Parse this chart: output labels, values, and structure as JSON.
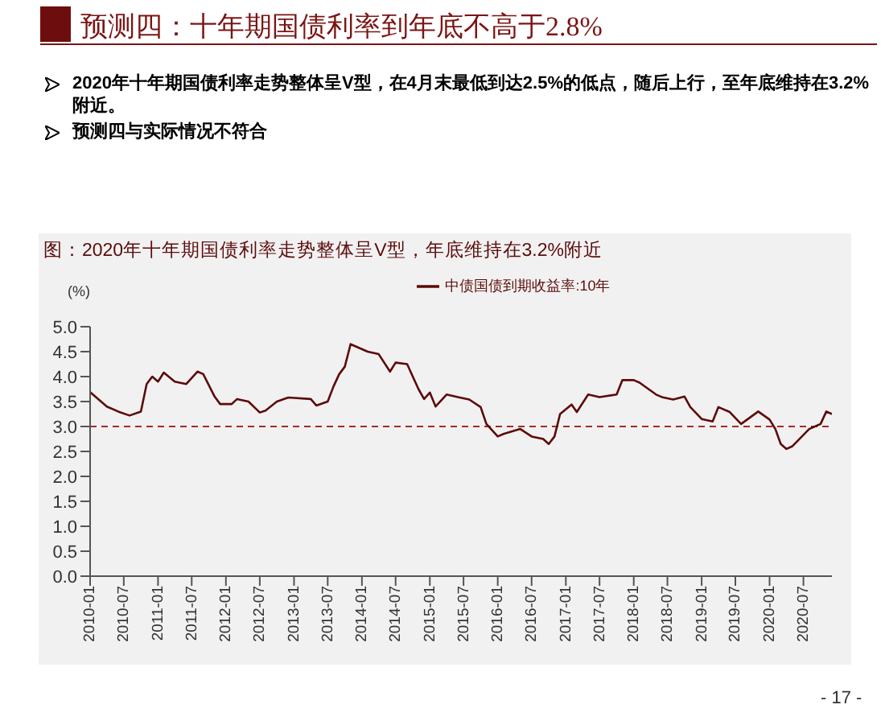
{
  "chart_data": {
    "type": "line",
    "title": "预测四：十年期国债利率到年底不高于2.8%",
    "subtitle": "图：2020年十年期国债利率走势整体呈V型，年底维持在3.2%附近",
    "annotations": [
      "2020年十年期国债利率走势整体呈V型，在4月末最低到达2.5%的低点，随后上行，至年底维持在3.2%附近。",
      "预测四与实际情况不符合",
      "- 17 -"
    ],
    "ylabel": "(%)",
    "x": [
      "2010-01",
      "2010-04",
      "2010-06",
      "2010-08",
      "2010-10",
      "2010-11",
      "2010-12",
      "2011-01",
      "2011-02",
      "2011-04",
      "2011-06",
      "2011-08",
      "2011-09",
      "2011-11",
      "2011-12",
      "2012-02",
      "2012-03",
      "2012-05",
      "2012-07",
      "2012-08",
      "2012-10",
      "2012-12",
      "2013-04",
      "2013-05",
      "2013-07",
      "2013-08",
      "2013-09",
      "2013-10",
      "2013-11",
      "2013-12",
      "2014-02",
      "2014-04",
      "2014-06",
      "2014-07",
      "2014-09",
      "2014-11",
      "2014-12",
      "2015-01",
      "2015-02",
      "2015-04",
      "2015-06",
      "2015-08",
      "2015-10",
      "2015-11",
      "2016-01",
      "2016-02",
      "2016-05",
      "2016-07",
      "2016-09",
      "2016-10",
      "2016-11",
      "2016-12",
      "2017-02",
      "2017-03",
      "2017-05",
      "2017-07",
      "2017-10",
      "2017-11",
      "2018-01",
      "2018-02",
      "2018-05",
      "2018-06",
      "2018-08",
      "2018-10",
      "2018-11",
      "2019-01",
      "2019-03",
      "2019-04",
      "2019-06",
      "2019-08",
      "2019-11",
      "2020-01",
      "2020-02",
      "2020-03",
      "2020-04",
      "2020-05",
      "2020-08",
      "2020-10",
      "2020-11",
      "2020-12"
    ],
    "series": [
      {
        "name": "中债国债到期收益率:10年",
        "color": "#5c0a0a",
        "values": [
          3.69,
          3.4,
          3.3,
          3.22,
          3.3,
          3.85,
          4.0,
          3.9,
          4.08,
          3.9,
          3.85,
          4.1,
          4.05,
          3.6,
          3.45,
          3.45,
          3.55,
          3.5,
          3.28,
          3.32,
          3.5,
          3.58,
          3.55,
          3.42,
          3.5,
          3.8,
          4.05,
          4.2,
          4.65,
          4.6,
          4.5,
          4.45,
          4.1,
          4.28,
          4.25,
          3.75,
          3.55,
          3.68,
          3.4,
          3.64,
          3.59,
          3.54,
          3.39,
          3.05,
          2.8,
          2.85,
          2.95,
          2.8,
          2.75,
          2.65,
          2.8,
          3.25,
          3.44,
          3.29,
          3.64,
          3.59,
          3.64,
          3.93,
          3.93,
          3.88,
          3.64,
          3.59,
          3.54,
          3.6,
          3.39,
          3.15,
          3.1,
          3.39,
          3.29,
          3.05,
          3.3,
          3.14,
          2.95,
          2.65,
          2.55,
          2.6,
          2.95,
          3.05,
          3.3,
          3.25
        ]
      }
    ],
    "xlim": [
      "2010-01",
      "2020-12"
    ],
    "xticks": [
      "2010-01",
      "2010-07",
      "2011-01",
      "2011-07",
      "2012-01",
      "2012-07",
      "2013-01",
      "2013-07",
      "2014-01",
      "2014-07",
      "2015-01",
      "2015-07",
      "2016-01",
      "2016-07",
      "2017-01",
      "2017-07",
      "2018-01",
      "2018-07",
      "2019-01",
      "2019-07",
      "2020-01",
      "2020-07"
    ],
    "ylim": [
      0,
      5
    ],
    "yticks": [
      {
        "value": 0,
        "label": "0.0"
      },
      {
        "value": 0.5,
        "label": "0.5"
      },
      {
        "value": 1,
        "label": "1.0"
      },
      {
        "value": 1.5,
        "label": "1.5"
      },
      {
        "value": 2,
        "label": "2.0"
      },
      {
        "value": 2.5,
        "label": "2.5"
      },
      {
        "value": 3,
        "label": "3.0"
      },
      {
        "value": 3.5,
        "label": "3.5"
      },
      {
        "value": 4,
        "label": "4.0"
      },
      {
        "value": 4.5,
        "label": "4.5"
      },
      {
        "value": 5,
        "label": "5.0"
      }
    ],
    "ref_lines": [
      {
        "axis": "y",
        "value": 3,
        "color": "#a52a2a",
        "line_style": "dashed"
      }
    ],
    "grid": false,
    "legend": "top",
    "marker": "none",
    "line_style": "solid"
  }
}
